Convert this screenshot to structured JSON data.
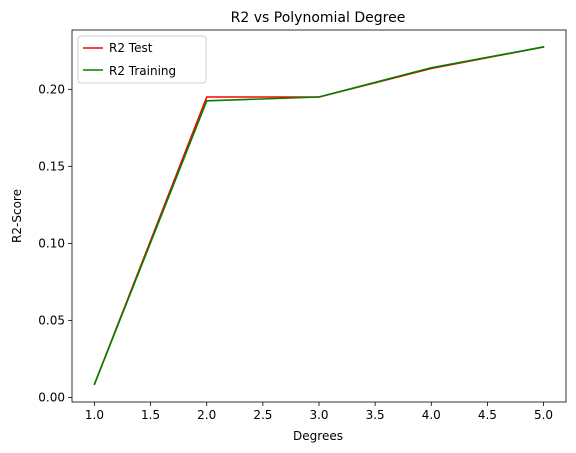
{
  "chart_data": {
    "type": "line",
    "title": "R2 vs Polynomial Degree",
    "xlabel": "Degrees",
    "ylabel": "R2-Score",
    "x": [
      1,
      2,
      3,
      4,
      5
    ],
    "xlim": [
      0.8,
      5.2
    ],
    "ylim": [
      -0.003,
      0.2385
    ],
    "xticks": [
      1.0,
      1.5,
      2.0,
      2.5,
      3.0,
      3.5,
      4.0,
      4.5,
      5.0
    ],
    "yticks": [
      0.0,
      0.05,
      0.1,
      0.15,
      0.2
    ],
    "xtick_labels": [
      "1.0",
      "1.5",
      "2.0",
      "2.5",
      "3.0",
      "3.5",
      "4.0",
      "4.5",
      "5.0"
    ],
    "ytick_labels": [
      "0.00",
      "0.05",
      "0.10",
      "0.15",
      "0.20"
    ],
    "grid": false,
    "legend_position": "top-left",
    "series": [
      {
        "name": "R2 Test",
        "color": "#ff0000",
        "values": [
          0.0085,
          0.195,
          0.195,
          0.2135,
          0.2275
        ]
      },
      {
        "name": "R2 Training",
        "color": "#008000",
        "values": [
          0.0085,
          0.1925,
          0.195,
          0.214,
          0.2275
        ]
      }
    ]
  }
}
